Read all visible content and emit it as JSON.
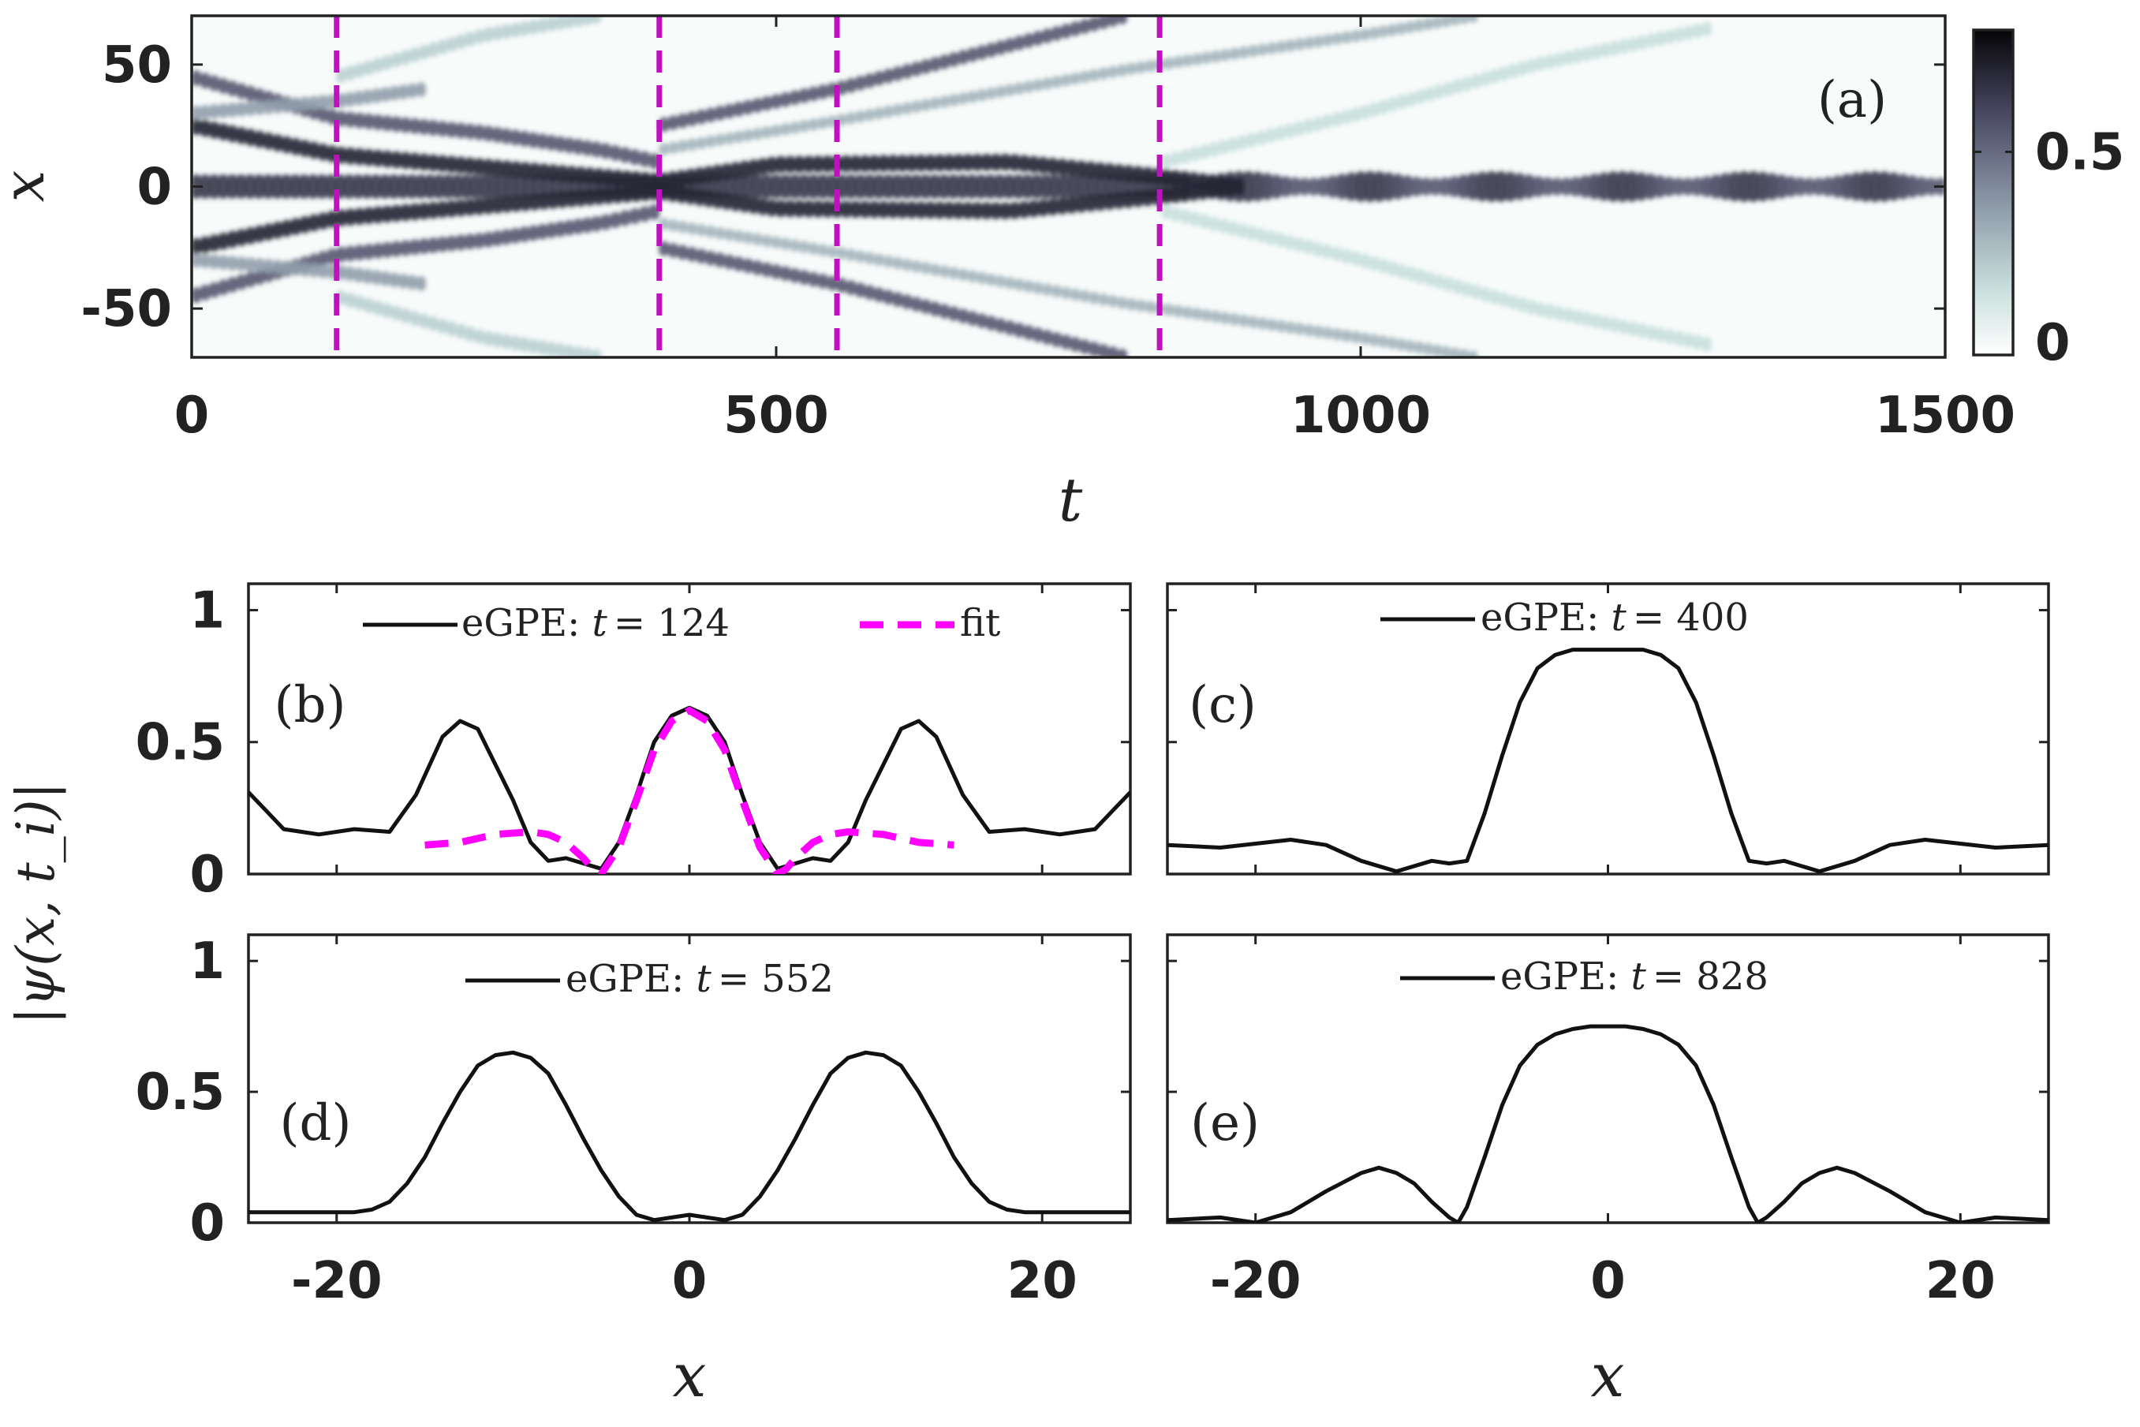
{
  "chart_data": [
    {
      "id": "a",
      "type": "heatmap",
      "panel_label": "(a)",
      "xlabel": "t",
      "ylabel": "x",
      "xlim": [
        0,
        1500
      ],
      "ylim": [
        -70,
        70
      ],
      "xticks": [
        0,
        500,
        1000,
        1500
      ],
      "xtick_labels": [
        "0",
        "500",
        "1000",
        "1500"
      ],
      "yticks": [
        50,
        0,
        -50
      ],
      "ytick_labels": [
        "50",
        "0",
        "-50"
      ],
      "colorbar": {
        "range": [
          0,
          0.8
        ],
        "ticks": [
          0.5,
          0
        ],
        "tick_labels": [
          "0.5",
          "0"
        ]
      },
      "markers_t": [
        124,
        400,
        552,
        828
      ],
      "marker_color": "#c010c0",
      "bands": [
        {
          "name": "central-soliton",
          "points": [
            [
              0,
              0
            ],
            [
              100,
              0
            ],
            [
              200,
              0
            ],
            [
              300,
              0
            ],
            [
              400,
              0
            ],
            [
              600,
              0
            ],
            [
              830,
              0
            ],
            [
              900,
              0
            ],
            [
              1500,
              0
            ]
          ],
          "amplitude": 0.65,
          "width": 5,
          "breathing": true
        },
        {
          "name": "upper-inner-trail",
          "points": [
            [
              0,
              25
            ],
            [
              124,
              13
            ],
            [
              250,
              8
            ],
            [
              400,
              2
            ],
            [
              500,
              9
            ],
            [
              700,
              10
            ],
            [
              830,
              4
            ],
            [
              900,
              0
            ]
          ],
          "amplitude": 0.7,
          "width": 3.5
        },
        {
          "name": "lower-inner-trail",
          "points": [
            [
              0,
              -25
            ],
            [
              124,
              -13
            ],
            [
              250,
              -8
            ],
            [
              400,
              -2
            ],
            [
              500,
              -9
            ],
            [
              700,
              -10
            ],
            [
              830,
              -4
            ],
            [
              900,
              0
            ]
          ],
          "amplitude": 0.7,
          "width": 3.5
        },
        {
          "name": "upper-side-trail",
          "points": [
            [
              0,
              45
            ],
            [
              124,
              28
            ],
            [
              250,
              22
            ],
            [
              350,
              15
            ],
            [
              400,
              10
            ]
          ],
          "amplitude": 0.55,
          "width": 3.2
        },
        {
          "name": "lower-side-trail",
          "points": [
            [
              0,
              -45
            ],
            [
              124,
              -28
            ],
            [
              250,
              -22
            ],
            [
              350,
              -15
            ],
            [
              400,
              -10
            ]
          ],
          "amplitude": 0.55,
          "width": 3.2
        },
        {
          "name": "upper-outer-trail",
          "points": [
            [
              0,
              30
            ],
            [
              124,
              35
            ],
            [
              200,
              40
            ]
          ],
          "amplitude": 0.35,
          "width": 3
        },
        {
          "name": "lower-outer-trail",
          "points": [
            [
              0,
              -30
            ],
            [
              124,
              -35
            ],
            [
              200,
              -40
            ]
          ],
          "amplitude": 0.35,
          "width": 3
        },
        {
          "name": "upper-ejected-1",
          "points": [
            [
              400,
              25
            ],
            [
              552,
              40
            ],
            [
              800,
              70
            ]
          ],
          "amplitude": 0.55,
          "width": 3
        },
        {
          "name": "lower-ejected-1",
          "points": [
            [
              400,
              -25
            ],
            [
              552,
              -40
            ],
            [
              800,
              -70
            ]
          ],
          "amplitude": 0.55,
          "width": 3
        },
        {
          "name": "upper-ejected-2",
          "points": [
            [
              400,
              15
            ],
            [
              552,
              27
            ],
            [
              800,
              48
            ],
            [
              1000,
              62
            ],
            [
              1100,
              70
            ]
          ],
          "amplitude": 0.28,
          "width": 2.5
        },
        {
          "name": "lower-ejected-2",
          "points": [
            [
              400,
              -15
            ],
            [
              552,
              -27
            ],
            [
              800,
              -48
            ],
            [
              1000,
              -62
            ],
            [
              1100,
              -70
            ]
          ],
          "amplitude": 0.28,
          "width": 2.5
        },
        {
          "name": "upper-late-wave",
          "points": [
            [
              830,
              10
            ],
            [
              1000,
              30
            ],
            [
              1150,
              50
            ],
            [
              1300,
              65
            ]
          ],
          "amplitude": 0.15,
          "width": 3
        },
        {
          "name": "lower-late-wave",
          "points": [
            [
              830,
              -10
            ],
            [
              1000,
              -30
            ],
            [
              1150,
              -50
            ],
            [
              1300,
              -65
            ]
          ],
          "amplitude": 0.15,
          "width": 3
        },
        {
          "name": "upper-early-wave",
          "points": [
            [
              124,
              45
            ],
            [
              250,
              62
            ],
            [
              350,
              70
            ]
          ],
          "amplitude": 0.2,
          "width": 3
        },
        {
          "name": "lower-early-wave",
          "points": [
            [
              124,
              -45
            ],
            [
              250,
              -62
            ],
            [
              350,
              -70
            ]
          ],
          "amplitude": 0.2,
          "width": 3
        }
      ]
    },
    {
      "id": "b",
      "type": "line",
      "panel_label": "(b)",
      "xlim": [
        -25,
        25
      ],
      "ylim": [
        0,
        1.1
      ],
      "yticks": [
        1,
        0.5,
        0
      ],
      "ytick_labels": [
        "1",
        "0.5",
        "0"
      ],
      "legend": [
        {
          "label_prefix": "eGPE: ",
          "label_var": "t",
          "label_value": "= 124"
        },
        {
          "label": "fit"
        }
      ],
      "series": [
        {
          "name": "eGPE",
          "color": "#111111",
          "x": [
            -25,
            -24,
            -23,
            -21,
            -19,
            -17,
            -15.5,
            -14,
            -13,
            -12,
            -10,
            -9,
            -8,
            -7,
            -6,
            -5,
            -4,
            -3,
            -2,
            -1,
            0,
            1,
            2,
            3,
            4,
            5,
            6,
            7,
            8,
            9,
            10,
            12,
            13,
            14,
            15.5,
            17,
            19,
            21,
            23,
            24,
            25
          ],
          "y": [
            0.31,
            0.24,
            0.17,
            0.15,
            0.17,
            0.16,
            0.3,
            0.52,
            0.58,
            0.55,
            0.28,
            0.12,
            0.05,
            0.06,
            0.04,
            0.02,
            0.12,
            0.3,
            0.5,
            0.6,
            0.63,
            0.6,
            0.5,
            0.3,
            0.12,
            0.02,
            0.04,
            0.06,
            0.05,
            0.12,
            0.28,
            0.55,
            0.58,
            0.52,
            0.3,
            0.16,
            0.17,
            0.15,
            0.17,
            0.24,
            0.31
          ]
        },
        {
          "name": "fit",
          "color": "#ff00ff",
          "dashed": true,
          "x": [
            -15,
            -13,
            -11,
            -9,
            -8,
            -7,
            -6,
            -5.5,
            -5,
            -4,
            -3,
            -2,
            -1,
            0,
            1,
            2,
            3,
            4,
            5,
            5.5,
            6,
            7,
            8,
            9,
            11,
            13,
            15
          ],
          "y": [
            0.11,
            0.12,
            0.15,
            0.16,
            0.15,
            0.12,
            0.06,
            0.02,
            0.0,
            0.1,
            0.28,
            0.47,
            0.58,
            0.62,
            0.58,
            0.47,
            0.28,
            0.1,
            0.0,
            0.02,
            0.06,
            0.12,
            0.15,
            0.16,
            0.15,
            0.12,
            0.11
          ]
        }
      ]
    },
    {
      "id": "c",
      "type": "line",
      "panel_label": "(c)",
      "xlim": [
        -25,
        25
      ],
      "ylim": [
        0,
        1.1
      ],
      "legend": [
        {
          "label_prefix": "eGPE: ",
          "label_var": "t",
          "label_value": "= 400"
        }
      ],
      "series": [
        {
          "name": "eGPE",
          "color": "#111111",
          "x": [
            -25,
            -22,
            -18,
            -16,
            -14,
            -12,
            -10,
            -9,
            -8,
            -7,
            -6,
            -5,
            -4,
            -3,
            -2,
            -1,
            0,
            1,
            2,
            3,
            4,
            5,
            6,
            7,
            8,
            9,
            10,
            12,
            14,
            16,
            18,
            22,
            25
          ],
          "y": [
            0.11,
            0.1,
            0.13,
            0.11,
            0.05,
            0.01,
            0.05,
            0.04,
            0.05,
            0.23,
            0.45,
            0.65,
            0.78,
            0.83,
            0.85,
            0.85,
            0.85,
            0.85,
            0.85,
            0.83,
            0.78,
            0.65,
            0.45,
            0.23,
            0.05,
            0.04,
            0.05,
            0.01,
            0.05,
            0.11,
            0.13,
            0.1,
            0.11
          ]
        }
      ]
    },
    {
      "id": "d",
      "type": "line",
      "panel_label": "(d)",
      "xlabel": "x",
      "xlim": [
        -25,
        25
      ],
      "ylim": [
        0,
        1.1
      ],
      "xticks": [
        -20,
        0,
        20
      ],
      "xtick_labels": [
        "-20",
        "0",
        "20"
      ],
      "yticks": [
        1,
        0.5,
        0
      ],
      "ytick_labels": [
        "1",
        "0.5",
        "0"
      ],
      "legend": [
        {
          "label_prefix": "eGPE: ",
          "label_var": "t",
          "label_value": "= 552"
        }
      ],
      "series": [
        {
          "name": "eGPE",
          "color": "#111111",
          "x": [
            -25,
            -20,
            -19,
            -18,
            -17,
            -16,
            -15,
            -14,
            -13,
            -12,
            -11,
            -10,
            -9,
            -8,
            -7,
            -6,
            -5,
            -4,
            -3,
            -2,
            -1,
            0,
            1,
            2,
            3,
            4,
            5,
            6,
            7,
            8,
            9,
            10,
            11,
            12,
            13,
            14,
            15,
            16,
            17,
            18,
            19,
            20,
            25
          ],
          "y": [
            0.04,
            0.04,
            0.04,
            0.05,
            0.08,
            0.15,
            0.25,
            0.38,
            0.5,
            0.6,
            0.64,
            0.65,
            0.63,
            0.57,
            0.45,
            0.32,
            0.2,
            0.1,
            0.03,
            0.01,
            0.02,
            0.03,
            0.02,
            0.01,
            0.03,
            0.1,
            0.2,
            0.32,
            0.45,
            0.57,
            0.63,
            0.65,
            0.64,
            0.6,
            0.5,
            0.38,
            0.25,
            0.15,
            0.08,
            0.05,
            0.04,
            0.04,
            0.04
          ]
        }
      ]
    },
    {
      "id": "e",
      "type": "line",
      "panel_label": "(e)",
      "xlabel": "x",
      "xlim": [
        -25,
        25
      ],
      "ylim": [
        0,
        1.1
      ],
      "xticks": [
        -20,
        0,
        20
      ],
      "xtick_labels": [
        "-20",
        "0",
        "20"
      ],
      "legend": [
        {
          "label_prefix": "eGPE: ",
          "label_var": "t",
          "label_value": "= 828"
        }
      ],
      "series": [
        {
          "name": "eGPE",
          "color": "#111111",
          "x": [
            -25,
            -22,
            -20,
            -18,
            -16,
            -14,
            -13,
            -12,
            -11,
            -10,
            -9,
            -8.5,
            -8,
            -7,
            -6,
            -5,
            -4,
            -3,
            -2,
            -1,
            0,
            1,
            2,
            3,
            4,
            5,
            6,
            7,
            8,
            8.5,
            9,
            10,
            11,
            12,
            13,
            14,
            16,
            18,
            20,
            22,
            25
          ],
          "y": [
            0.01,
            0.02,
            0.0,
            0.04,
            0.12,
            0.19,
            0.21,
            0.19,
            0.15,
            0.08,
            0.02,
            0.0,
            0.06,
            0.25,
            0.45,
            0.6,
            0.68,
            0.72,
            0.74,
            0.75,
            0.75,
            0.75,
            0.74,
            0.72,
            0.68,
            0.6,
            0.45,
            0.25,
            0.06,
            0.0,
            0.02,
            0.08,
            0.15,
            0.19,
            0.21,
            0.19,
            0.12,
            0.04,
            0.0,
            0.02,
            0.01
          ]
        }
      ]
    }
  ],
  "shared_ylabel": "|ψ(x, t_i)|"
}
